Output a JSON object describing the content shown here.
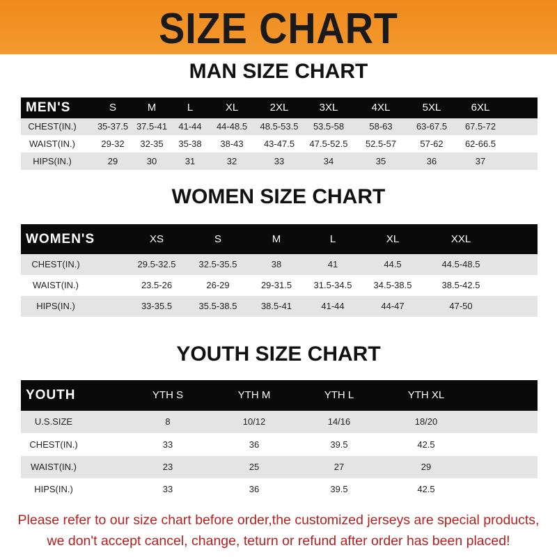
{
  "banner": {
    "title": "SIZE CHART",
    "color": "#f08a1e"
  },
  "men": {
    "heading": "MAN SIZE CHART",
    "header": [
      "MEN'S",
      "S",
      "M",
      "L",
      "XL",
      "2XL",
      "3XL",
      "4XL",
      "5XL",
      "6XL"
    ],
    "rows": [
      [
        "CHEST(IN.)",
        "35-37.5",
        "37.5-41",
        "41-44",
        "44-48.5",
        "48.5-53.5",
        "53.5-58",
        "58-63",
        "63-67.5",
        "67.5-72"
      ],
      [
        "WAIST(IN.)",
        "29-32",
        "32-35",
        "35-38",
        "38-43",
        "43-47.5",
        "47.5-52.5",
        "52.5-57",
        "57-62",
        "62-66.5"
      ],
      [
        "HIPS(IN.)",
        "29",
        "30",
        "31",
        "32",
        "33",
        "34",
        "35",
        "36",
        "37"
      ]
    ]
  },
  "women": {
    "heading": "WOMEN SIZE CHART",
    "header": [
      "WOMEN'S",
      "XS",
      "S",
      "M",
      "L",
      "XL",
      "XXL"
    ],
    "rows": [
      [
        "CHEST(IN.)",
        "29.5-32.5",
        "32.5-35.5",
        "38",
        "41",
        "44.5",
        "44.5-48.5"
      ],
      [
        "WAIST(IN.)",
        "23.5-26",
        "26-29",
        "29-31.5",
        "31.5-34.5",
        "34.5-38.5",
        "38.5-42.5"
      ],
      [
        "HIPS(IN.)",
        "33-35.5",
        "35.5-38.5",
        "38.5-41",
        "41-44",
        "44-47",
        "47-50"
      ]
    ]
  },
  "youth": {
    "heading": "YOUTH SIZE CHART",
    "header": [
      "YOUTH",
      "YTH S",
      "YTH M",
      "YTH L",
      "YTH XL"
    ],
    "rows": [
      [
        "U.S.SIZE",
        "8",
        "10/12",
        "14/16",
        "18/20"
      ],
      [
        "CHEST(IN.)",
        "33",
        "36",
        "39.5",
        "42.5"
      ],
      [
        "WAIST(IN.)",
        "23",
        "25",
        "27",
        "29"
      ],
      [
        "HIPS(IN.)",
        "33",
        "36",
        "39.5",
        "42.5"
      ]
    ]
  },
  "footer": {
    "line1": "Please refer to our size chart before order,the customized jerseys are special products,",
    "line2": "we don't accept cancel, change, teturn or refund after order has been placed!",
    "color": "#b4201f"
  }
}
